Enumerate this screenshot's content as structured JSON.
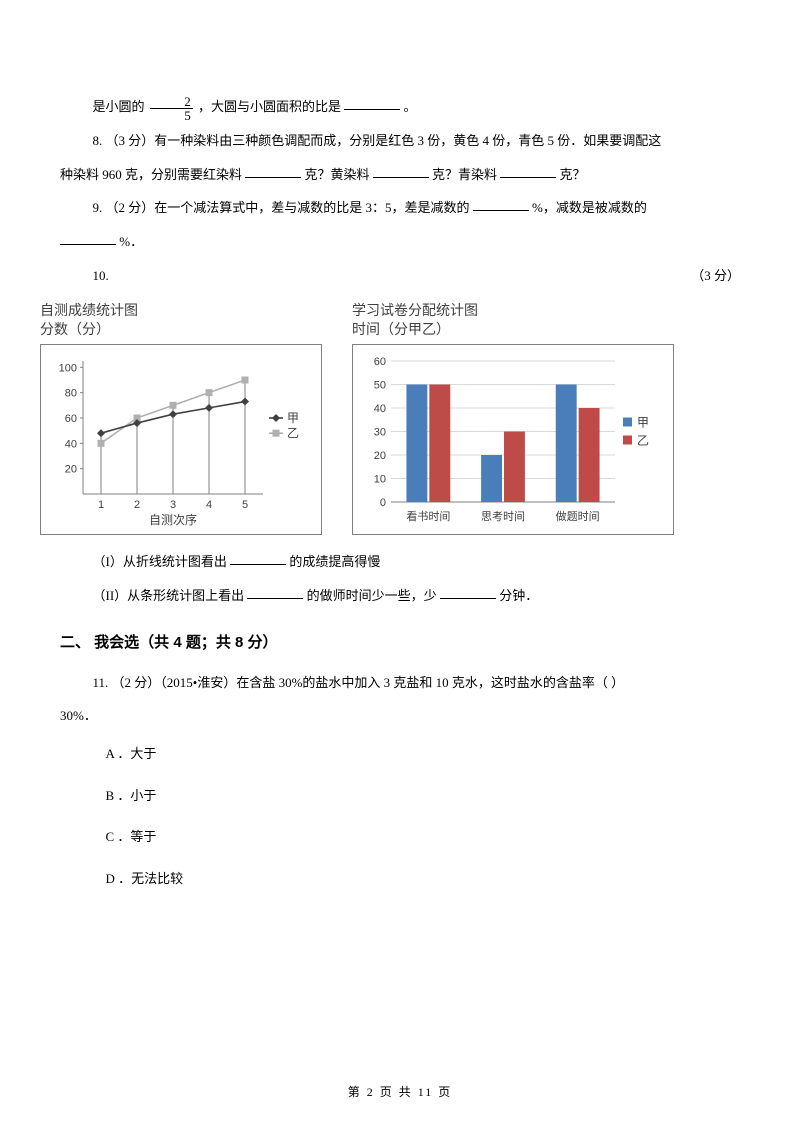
{
  "q7": {
    "prefix": "是小圆的",
    "frac_num": "2",
    "frac_den": "5",
    "rest": "，大圆与小圆面积的比是",
    "end": "。"
  },
  "q8": {
    "label": "8.    （3 分）有一种染料由三种颜色调配而成，分别是红色 3 份，黄色 4 份，青色 5 份．如果要调配这",
    "line2a": "种染料 960 克，分别需要红染料",
    "line2b": "克？黄染料",
    "line2c": "克？青染料",
    "line2d": "克？"
  },
  "q9": {
    "label": "9.         （2 分）在一个减法算式中，差与减数的比是 3：5，差是减数的",
    "mid": "%，减数是被减数的",
    "end": "%．"
  },
  "q10": {
    "label": "10.",
    "score": "（3 分）"
  },
  "chart1": {
    "title_l1": "自测成绩统计图",
    "title_l2": "分数（分）",
    "xlabel": "自测次序",
    "x_ticks": [
      "1",
      "2",
      "3",
      "4",
      "5"
    ],
    "y_ticks": [
      20,
      40,
      60,
      80,
      100
    ],
    "ylim": [
      0,
      105
    ],
    "series": {
      "jia": {
        "label": "甲",
        "color": "#404040",
        "marker": "diamond",
        "values": [
          48,
          56,
          63,
          68,
          73
        ]
      },
      "yi": {
        "label": "乙",
        "color": "#b0b0b0",
        "marker": "square",
        "values": [
          40,
          60,
          70,
          80,
          90
        ]
      }
    },
    "border_color": "#808080",
    "grid_color": "#ffffff"
  },
  "chart2": {
    "title_l1": "学习试卷分配统计图",
    "title_l2": "时间（分甲乙）",
    "categories": [
      "看书时间",
      "思考时间",
      "做题时间"
    ],
    "y_ticks": [
      0,
      10,
      20,
      30,
      40,
      50,
      60
    ],
    "ylim": [
      0,
      60
    ],
    "series": {
      "jia": {
        "label": "甲",
        "color": "#4a7ebb",
        "values": [
          50,
          20,
          50
        ]
      },
      "yi": {
        "label": "乙",
        "color": "#be4b48",
        "values": [
          50,
          30,
          40
        ]
      }
    },
    "grid_color": "#d9d9d9",
    "border_color": "#808080"
  },
  "q10_parts": {
    "p1a": "（I）从折线统计图看出",
    "p1b": "的成绩提高得慢",
    "p2a": "（II）从条形统计图上看出",
    "p2b": "的做师时间少一些，少",
    "p2c": "分钟．"
  },
  "section2": "二、 我会选（共 4 题；共 8 分）",
  "q11": {
    "label": "11.    （2 分）（2015•淮安）在含盐 30%的盐水中加入 3 克盐和 10 克水，这时盐水的含盐率（      ）",
    "line2": "30%．"
  },
  "options": {
    "A": "A ．大于",
    "B": "B ．小于",
    "C": "C ．等于",
    "D": "D ．无法比较"
  },
  "footer": "第  2  页  共  11  页"
}
